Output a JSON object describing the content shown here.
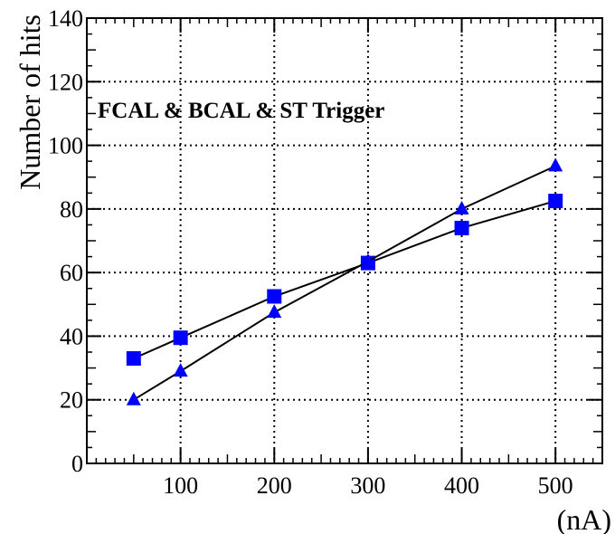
{
  "chart_data": {
    "type": "line",
    "title": "",
    "xlabel": "(nA)",
    "ylabel": "Number of hits",
    "annotation": "FCAL & BCAL & ST  Trigger",
    "xlim": [
      0,
      550
    ],
    "ylim": [
      0,
      140
    ],
    "x_ticks": [
      100,
      200,
      300,
      400,
      500
    ],
    "y_ticks": [
      0,
      20,
      40,
      60,
      80,
      100,
      120,
      140
    ],
    "grid": true,
    "x": [
      50,
      100,
      200,
      300,
      400,
      500
    ],
    "series": [
      {
        "marker": "square",
        "color": "#0000ff",
        "values": [
          33,
          39.5,
          52.5,
          63,
          74,
          82.5
        ]
      },
      {
        "marker": "triangle",
        "color": "#0000ff",
        "values": [
          20,
          29,
          47.5,
          63.5,
          80,
          93.5
        ]
      }
    ]
  }
}
